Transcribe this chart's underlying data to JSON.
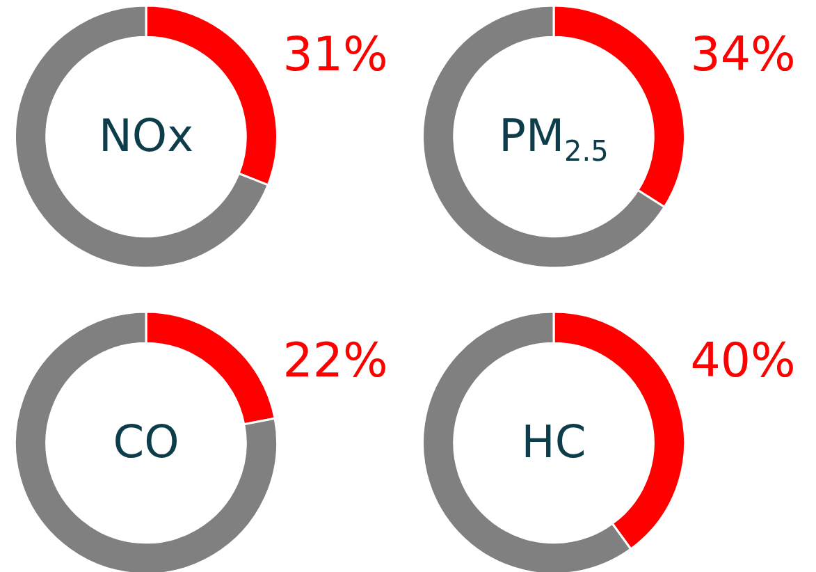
{
  "chart_data": [
    {
      "type": "donut",
      "title": "NOx",
      "categories": [
        null,
        null
      ],
      "values": [
        31,
        69
      ],
      "colors": [
        "#ff0000",
        "#808080"
      ],
      "value_labels": [
        "31%",
        null
      ],
      "legend": false
    },
    {
      "type": "donut",
      "title": "PM$_{2.5}$",
      "categories": [
        null,
        null
      ],
      "values": [
        34,
        66
      ],
      "colors": [
        "#ff0000",
        "#808080"
      ],
      "value_labels": [
        "34%",
        null
      ],
      "legend": false
    },
    {
      "type": "donut",
      "title": "CO",
      "categories": [
        null,
        null
      ],
      "values": [
        22,
        78
      ],
      "colors": [
        "#ff0000",
        "#808080"
      ],
      "value_labels": [
        "22%",
        null
      ],
      "legend": false
    },
    {
      "type": "donut",
      "title": "HC",
      "categories": [
        null,
        null
      ],
      "values": [
        40,
        60
      ],
      "colors": [
        "#ff0000",
        "#808080"
      ],
      "value_labels": [
        "40%",
        null
      ],
      "legend": false
    }
  ]
}
